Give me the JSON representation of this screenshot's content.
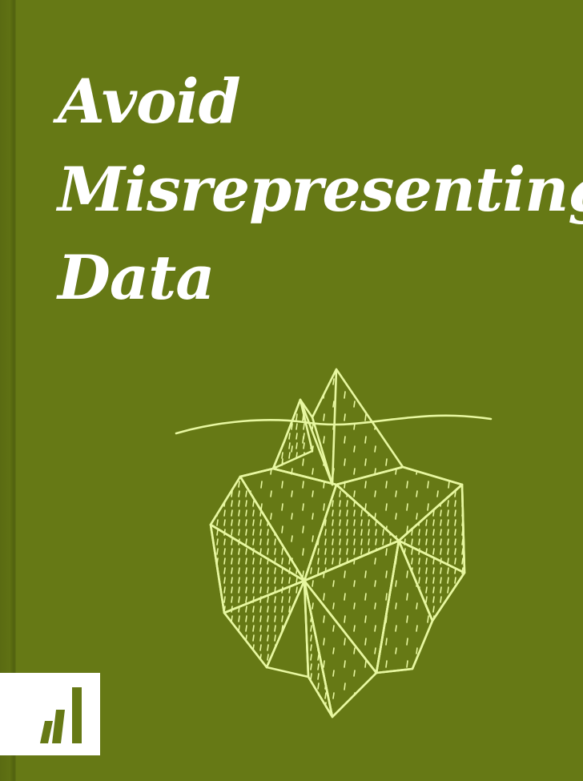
{
  "book": {
    "title_lines": [
      "Avoid",
      "Misrepresenting",
      "Data"
    ],
    "colors": {
      "background": "#667915",
      "title": "#ffffff",
      "illustration": "#e7f7a0",
      "logo": "#667915"
    },
    "illustration_icon": "iceberg-sketch-icon",
    "logo_icon": "bar-chart-logo-icon"
  }
}
